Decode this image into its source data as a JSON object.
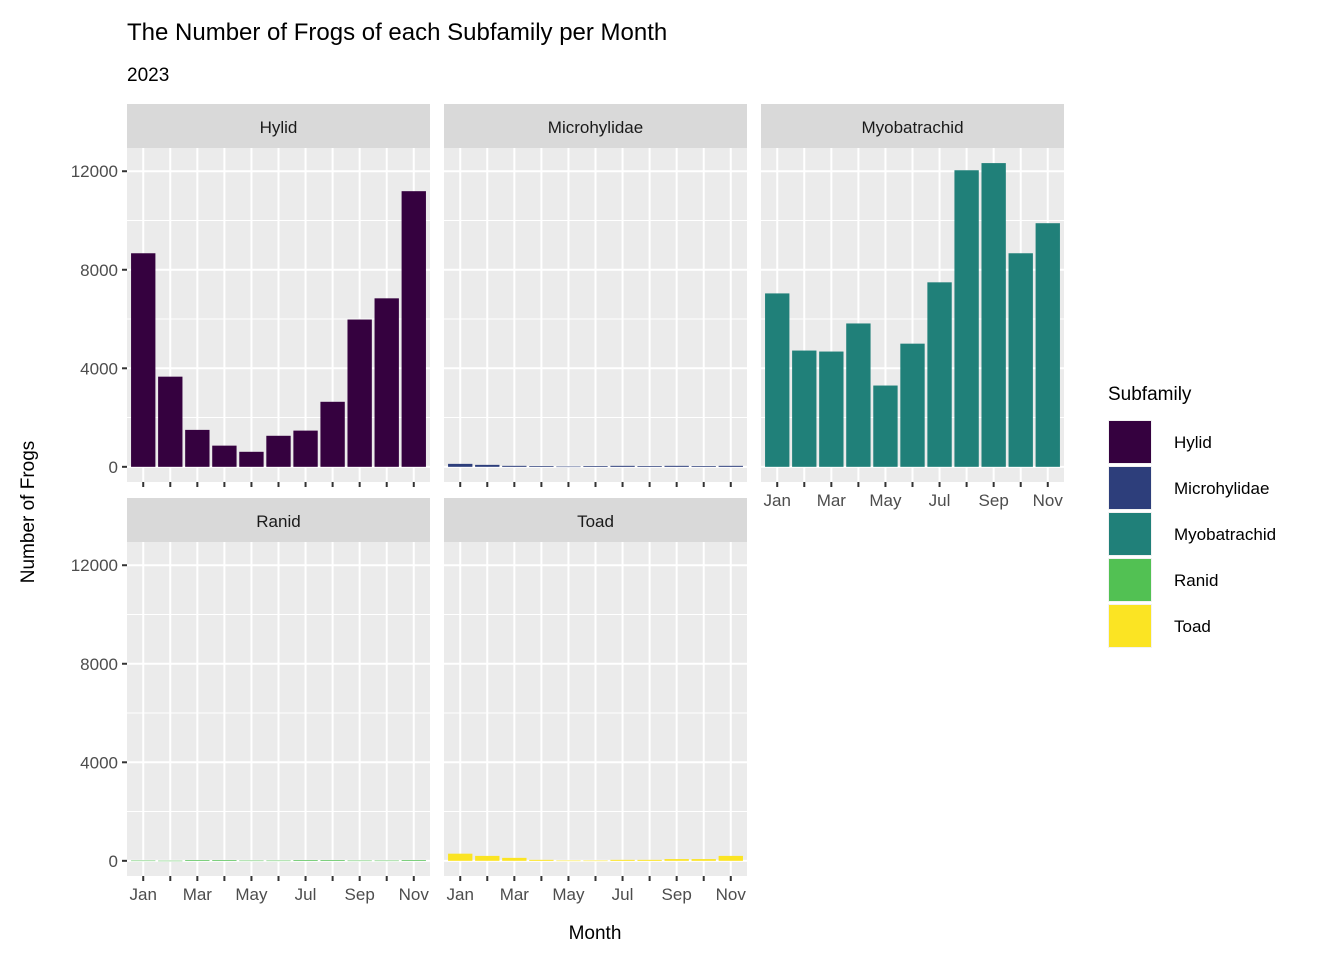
{
  "chart_data": {
    "type": "bar",
    "title": "The Number of Frogs of each Subfamily per Month",
    "subtitle": "2023",
    "xlabel": "Month",
    "ylabel": "Number of Frogs",
    "categories": [
      "Jan",
      "Feb",
      "Mar",
      "Apr",
      "May",
      "Jun",
      "Jul",
      "Aug",
      "Sep",
      "Oct",
      "Nov"
    ],
    "x_tick_labels": [
      "Jan",
      "",
      "Mar",
      "",
      "May",
      "",
      "Jul",
      "",
      "Sep",
      "",
      "Nov"
    ],
    "y_ticks": [
      0,
      4000,
      8000,
      12000
    ],
    "y_tick_labels": [
      "0",
      "4000",
      "8000",
      "12000"
    ],
    "ylim": [
      -616,
      12943
    ],
    "grid": true,
    "facet_layout": "3 columns, 2 rows, shared y",
    "legend": {
      "title": "Subfamily",
      "position": "right"
    },
    "series": [
      {
        "name": "Hylid",
        "color": "#35013f",
        "values": [
          8670,
          3660,
          1500,
          860,
          610,
          1260,
          1470,
          2640,
          5980,
          6840,
          11190
        ]
      },
      {
        "name": "Microhylidae",
        "color": "#2d3e7b",
        "values": [
          120,
          80,
          40,
          30,
          10,
          30,
          40,
          30,
          40,
          30,
          40
        ]
      },
      {
        "name": "Myobatrachid",
        "color": "#208079",
        "values": [
          7040,
          4720,
          4680,
          5820,
          3300,
          5000,
          7490,
          12040,
          12330,
          8670,
          9890
        ]
      },
      {
        "name": "Ranid",
        "color": "#52c153",
        "values": [
          10,
          5,
          30,
          30,
          10,
          10,
          30,
          30,
          10,
          10,
          30
        ]
      },
      {
        "name": "Toad",
        "color": "#fbe423",
        "values": [
          290,
          200,
          120,
          40,
          10,
          10,
          40,
          40,
          70,
          70,
          200
        ]
      }
    ]
  }
}
